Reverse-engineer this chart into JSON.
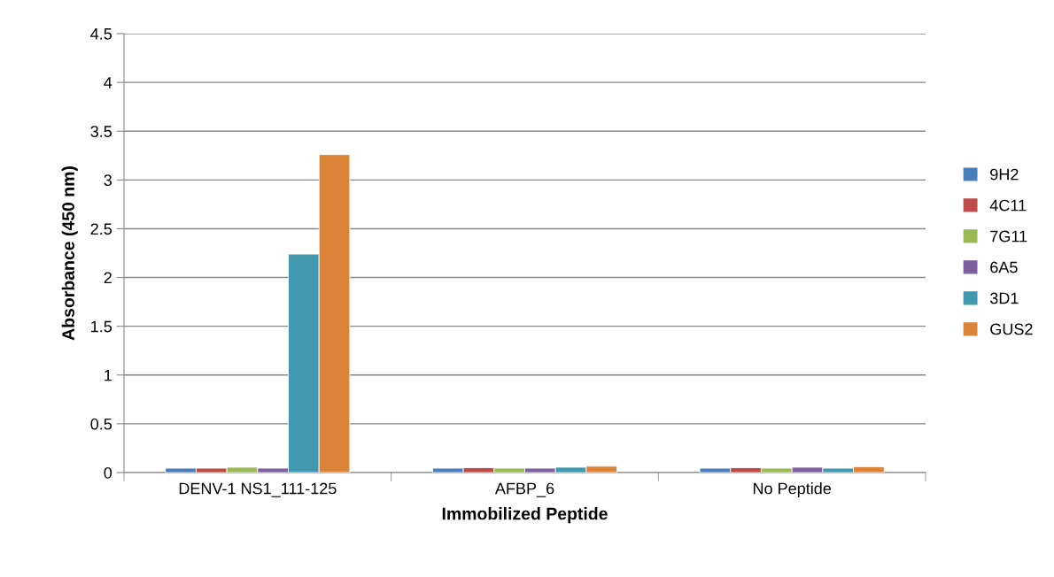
{
  "chart_data": {
    "type": "bar",
    "xlabel": "Immobilized Peptide",
    "ylabel": "Absorbance (450 nm)",
    "categories": [
      "DENV-1 NS1_111-125",
      "AFBP_6",
      "No Peptide"
    ],
    "series": [
      {
        "name": "9H2",
        "color": "#4a7ebb",
        "values": [
          0.045,
          0.045,
          0.045
        ]
      },
      {
        "name": "4C11",
        "color": "#be4b48",
        "values": [
          0.045,
          0.05,
          0.05
        ]
      },
      {
        "name": "7G11",
        "color": "#98b954",
        "values": [
          0.055,
          0.045,
          0.045
        ]
      },
      {
        "name": "6A5",
        "color": "#7d5fa0",
        "values": [
          0.045,
          0.045,
          0.055
        ]
      },
      {
        "name": "3D1",
        "color": "#4198af",
        "values": [
          2.24,
          0.055,
          0.045
        ]
      },
      {
        "name": "GUS2",
        "color": "#db8438",
        "values": [
          3.26,
          0.065,
          0.06
        ]
      }
    ],
    "ylim": [
      0,
      4.5
    ],
    "yticks": [
      0,
      0.5,
      1,
      1.5,
      2,
      2.5,
      3,
      3.5,
      4,
      4.5
    ],
    "grid": "y",
    "legend": "right"
  }
}
